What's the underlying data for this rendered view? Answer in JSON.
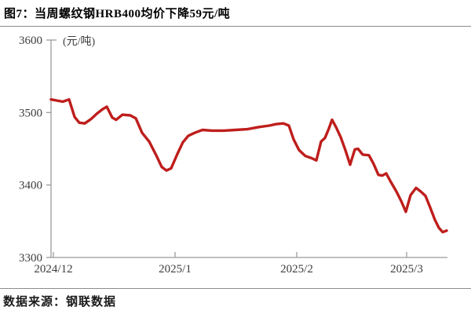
{
  "page": {
    "title": "图7：当周螺纹钢HRB400均价下降59元/吨",
    "source": "数据来源：钢联数据"
  },
  "chart_data": {
    "type": "line",
    "title": "当周螺纹钢HRB400均价下降59元/吨",
    "unit_label": "(元/吨)",
    "series_name": "螺纹钢HRB400均价",
    "line_color": "#be1e1c",
    "axis_color": "#9b9b9b",
    "label_color": "#3d3d3d",
    "ylim": [
      3300,
      3600
    ],
    "yticks": [
      3300,
      3400,
      3500,
      3600
    ],
    "xticks": [
      {
        "t": 0,
        "label": "2024/12"
      },
      {
        "t": 31,
        "label": "2025/1"
      },
      {
        "t": 62,
        "label": "2025/2"
      },
      {
        "t": 90,
        "label": "2025/3"
      }
    ],
    "x_axis_note": "t = days since 2024/12/01",
    "grid": false,
    "legend": "none",
    "points": [
      [
        -0.6,
        3518
      ],
      [
        2.4,
        3515
      ],
      [
        4.0,
        3518
      ],
      [
        5.4,
        3494
      ],
      [
        6.6,
        3486
      ],
      [
        8.0,
        3485
      ],
      [
        9.6,
        3491
      ],
      [
        11.2,
        3499
      ],
      [
        12.4,
        3504
      ],
      [
        13.6,
        3508
      ],
      [
        15.0,
        3493
      ],
      [
        16.0,
        3490
      ],
      [
        17.6,
        3497
      ],
      [
        19.6,
        3496
      ],
      [
        21.0,
        3492
      ],
      [
        22.6,
        3472
      ],
      [
        24.4,
        3460
      ],
      [
        26.2,
        3441
      ],
      [
        27.6,
        3425
      ],
      [
        28.8,
        3420
      ],
      [
        30.0,
        3423
      ],
      [
        31.6,
        3443
      ],
      [
        33.0,
        3459
      ],
      [
        34.4,
        3468
      ],
      [
        36.0,
        3472
      ],
      [
        38.0,
        3476
      ],
      [
        40.4,
        3475
      ],
      [
        43.4,
        3475
      ],
      [
        46.4,
        3476
      ],
      [
        49.4,
        3477
      ],
      [
        52.4,
        3480
      ],
      [
        55.0,
        3482
      ],
      [
        56.8,
        3484
      ],
      [
        58.6,
        3485
      ],
      [
        60.0,
        3482
      ],
      [
        61.2,
        3463
      ],
      [
        62.6,
        3448
      ],
      [
        64.2,
        3440
      ],
      [
        65.8,
        3437
      ],
      [
        67.0,
        3434
      ],
      [
        68.2,
        3460
      ],
      [
        69.2,
        3465
      ],
      [
        70.2,
        3478
      ],
      [
        71.0,
        3490
      ],
      [
        72.0,
        3480
      ],
      [
        73.2,
        3466
      ],
      [
        74.4,
        3448
      ],
      [
        75.6,
        3428
      ],
      [
        76.8,
        3449
      ],
      [
        77.6,
        3450
      ],
      [
        78.8,
        3442
      ],
      [
        80.4,
        3441
      ],
      [
        81.6,
        3429
      ],
      [
        82.8,
        3414
      ],
      [
        83.8,
        3413
      ],
      [
        84.8,
        3416
      ],
      [
        86.0,
        3404
      ],
      [
        87.4,
        3391
      ],
      [
        88.6,
        3378
      ],
      [
        89.8,
        3363
      ],
      [
        91.0,
        3386
      ],
      [
        92.4,
        3396
      ],
      [
        93.6,
        3391
      ],
      [
        94.8,
        3385
      ],
      [
        96.0,
        3369
      ],
      [
        97.2,
        3352
      ],
      [
        98.2,
        3341
      ],
      [
        99.2,
        3335
      ],
      [
        100.2,
        3337
      ]
    ]
  }
}
